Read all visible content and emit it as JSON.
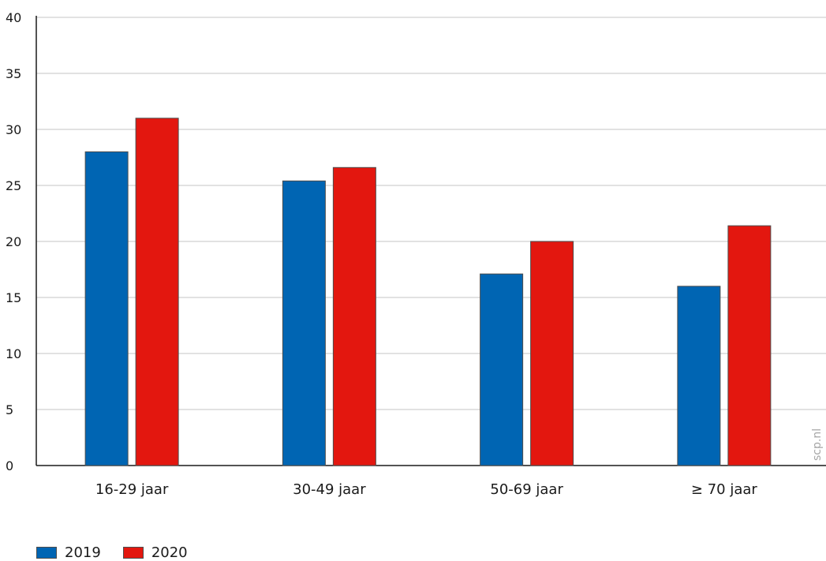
{
  "chart_data": {
    "type": "bar",
    "categories": [
      "16-29 jaar",
      "30-49 jaar",
      "50-69 jaar",
      "≥ 70 jaar"
    ],
    "series": [
      {
        "name": "2019",
        "values": [
          28,
          25.4,
          17.1,
          16
        ],
        "color": "#0065b3"
      },
      {
        "name": "2020",
        "values": [
          31,
          26.6,
          20,
          21.4
        ],
        "color": "#e3170f"
      }
    ],
    "ylim": [
      0,
      40
    ],
    "yticks": [
      "0",
      "5",
      "10",
      "15",
      "20",
      "25",
      "30",
      "35",
      "40"
    ],
    "grid": true,
    "legend_position": "bottom-left",
    "source": "scp.nl"
  }
}
